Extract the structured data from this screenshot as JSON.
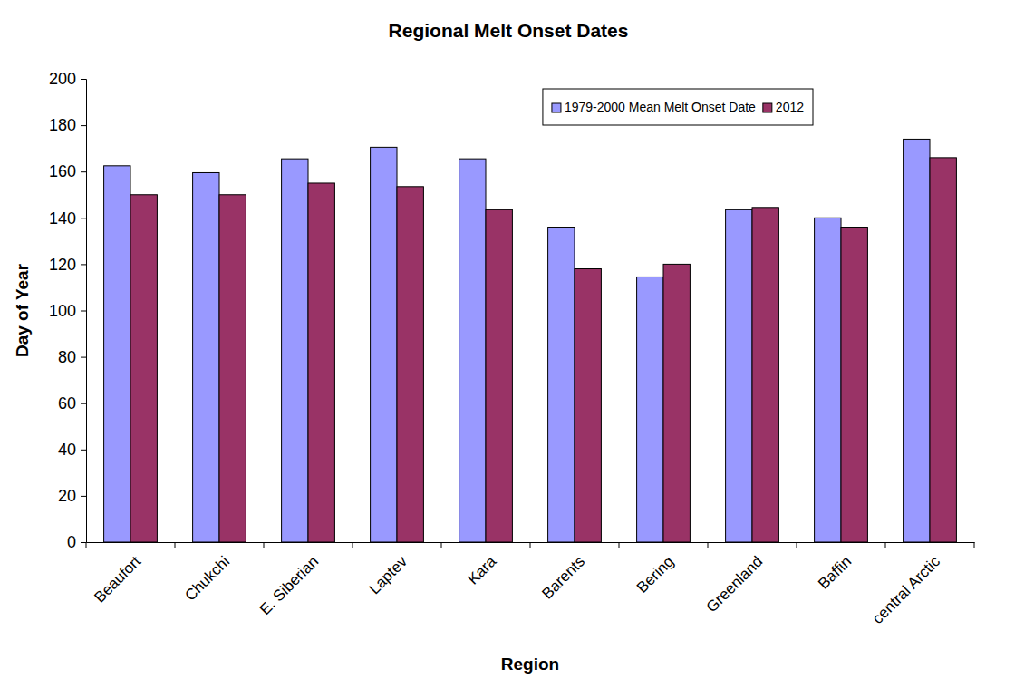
{
  "chart_data": {
    "type": "bar",
    "title": "Regional Melt Onset Dates",
    "x_label": "Region",
    "y_label": "Day of Year",
    "categories": [
      "Beaufort",
      "Chukchi",
      "E. Siberian",
      "Laptev",
      "Kara",
      "Barents",
      "Bering",
      "Greenland",
      "Baffin",
      "central Arctic"
    ],
    "series": [
      {
        "name": "1979-2000 Mean Melt Onset Date",
        "color": "#9999ff",
        "values": [
          162.5,
          159.5,
          165.5,
          170.5,
          165.5,
          136,
          114.5,
          143.5,
          140,
          174
        ]
      },
      {
        "name": "2012",
        "color": "#993366",
        "values": [
          150,
          150,
          155,
          153.5,
          143.5,
          118,
          120,
          144.5,
          136,
          166
        ]
      }
    ],
    "ylim": [
      0,
      200
    ],
    "yticks": [
      0,
      20,
      40,
      60,
      80,
      100,
      120,
      140,
      160,
      180,
      200
    ],
    "grid": false,
    "legend": "top-right"
  }
}
